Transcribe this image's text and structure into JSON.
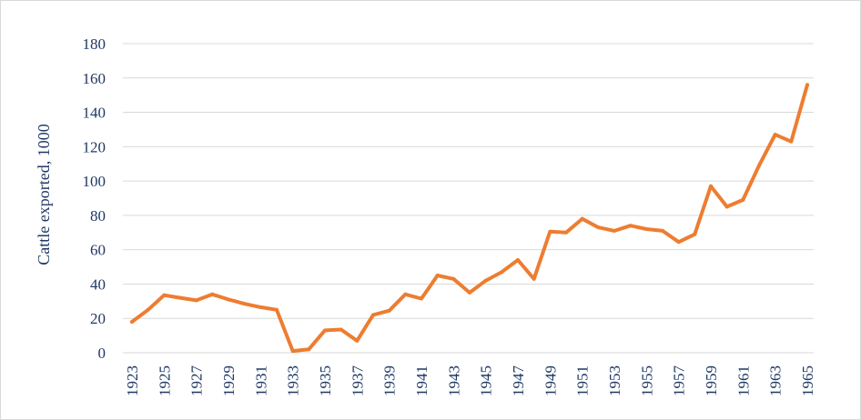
{
  "chart_data": {
    "type": "line",
    "title": "",
    "xlabel": "",
    "ylabel": "Cattle exported, 1000",
    "ylim": [
      0,
      180
    ],
    "yticks": [
      0,
      20,
      40,
      60,
      80,
      100,
      120,
      140,
      160,
      180
    ],
    "xticks": [
      1923,
      1925,
      1927,
      1929,
      1931,
      1933,
      1935,
      1937,
      1939,
      1941,
      1943,
      1945,
      1947,
      1949,
      1951,
      1953,
      1955,
      1957,
      1959,
      1961,
      1963,
      1965
    ],
    "grid": "horizontal",
    "legend": "none",
    "colors": {
      "line": "#ed7d31",
      "grid": "#d9d9d9",
      "text": "#1f3864"
    },
    "series": [
      {
        "x": [
          1923,
          1924,
          1925,
          1926,
          1927,
          1928,
          1929,
          1930,
          1931,
          1932,
          1933,
          1934,
          1935,
          1936,
          1937,
          1938,
          1939,
          1940,
          1941,
          1942,
          1943,
          1944,
          1945,
          1946,
          1947,
          1948,
          1949,
          1950,
          1951,
          1952,
          1953,
          1954,
          1955,
          1956,
          1957,
          1958,
          1959,
          1960,
          1961,
          1962,
          1963,
          1964,
          1965
        ],
        "values": [
          18,
          25,
          33.5,
          32,
          30.5,
          34,
          31,
          28.5,
          26.5,
          25,
          1,
          2,
          13,
          13.5,
          7,
          22,
          24.5,
          34,
          31.5,
          45,
          43,
          35,
          42,
          47,
          54,
          43,
          70.5,
          70,
          78,
          73,
          71,
          74,
          72,
          71,
          64.5,
          69,
          97,
          85,
          89,
          109,
          127,
          123,
          156
        ]
      }
    ]
  }
}
